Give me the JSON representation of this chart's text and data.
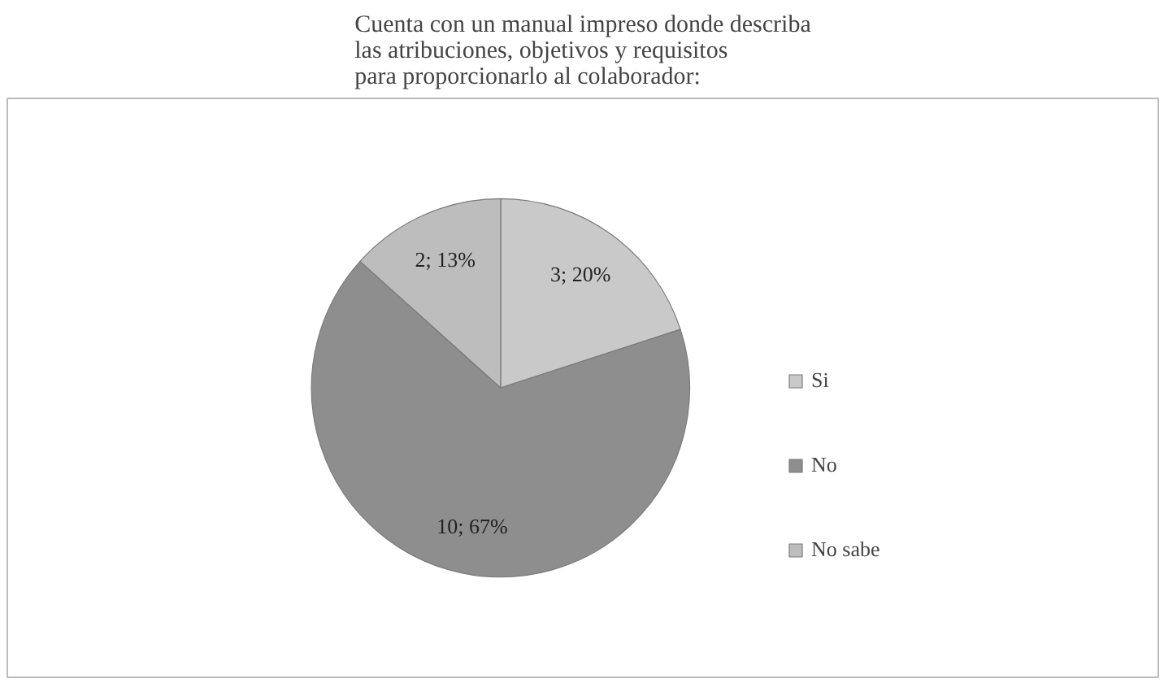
{
  "chart_data": {
    "type": "pie",
    "title": "Cuenta con un manual impreso donde describa\nlas atribuciones, objetivos y requisitos\npara proporcionarlo al colaborador:",
    "categories": [
      "Si",
      "No",
      "No sabe"
    ],
    "values": [
      3,
      10,
      2
    ],
    "value_labels": [
      "3; 20%",
      "10; 67%",
      "2; 13%"
    ],
    "colors": [
      "#c9c9c9",
      "#8e8e8e",
      "#bdbdbd"
    ],
    "legend": "right"
  }
}
